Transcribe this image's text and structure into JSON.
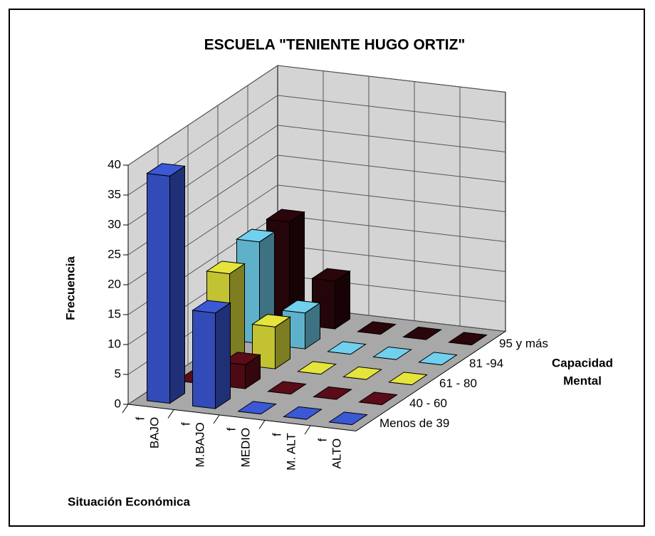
{
  "chart_data": {
    "type": "bar3d",
    "title": "ESCUELA \"TENIENTE HUGO ORTIZ\"",
    "y_axis_label": "Frecuencia",
    "x_axis_label": "Situación Económica",
    "z_axis_label": [
      "Capacidad",
      "Mental"
    ],
    "categories": [
      [
        "f",
        "BAJO"
      ],
      [
        "f",
        "M.BAJO"
      ],
      [
        "f",
        "MEDIO"
      ],
      [
        "f",
        "M. ALT"
      ],
      [
        "f",
        "ALTO"
      ]
    ],
    "series": [
      {
        "name": "Menos de 39",
        "color": "#3b58d6",
        "values": [
          38,
          16,
          0,
          0,
          0
        ]
      },
      {
        "name": "40 - 60",
        "color": "#5a0c18",
        "values": [
          0,
          4,
          0,
          0,
          0
        ]
      },
      {
        "name": "61 - 80",
        "color": "#e4e43c",
        "values": [
          15,
          7,
          0,
          0,
          0
        ]
      },
      {
        "name": "81 -94",
        "color": "#70d0ee",
        "values": [
          17,
          6,
          0,
          0,
          0
        ]
      },
      {
        "name": "95 y más",
        "color": "#2a060a",
        "values": [
          17,
          8,
          0,
          0,
          0
        ]
      }
    ],
    "ylim": [
      0,
      40
    ],
    "yticks": [
      0,
      5,
      10,
      15,
      20,
      25,
      30,
      35,
      40
    ],
    "grid": true
  }
}
